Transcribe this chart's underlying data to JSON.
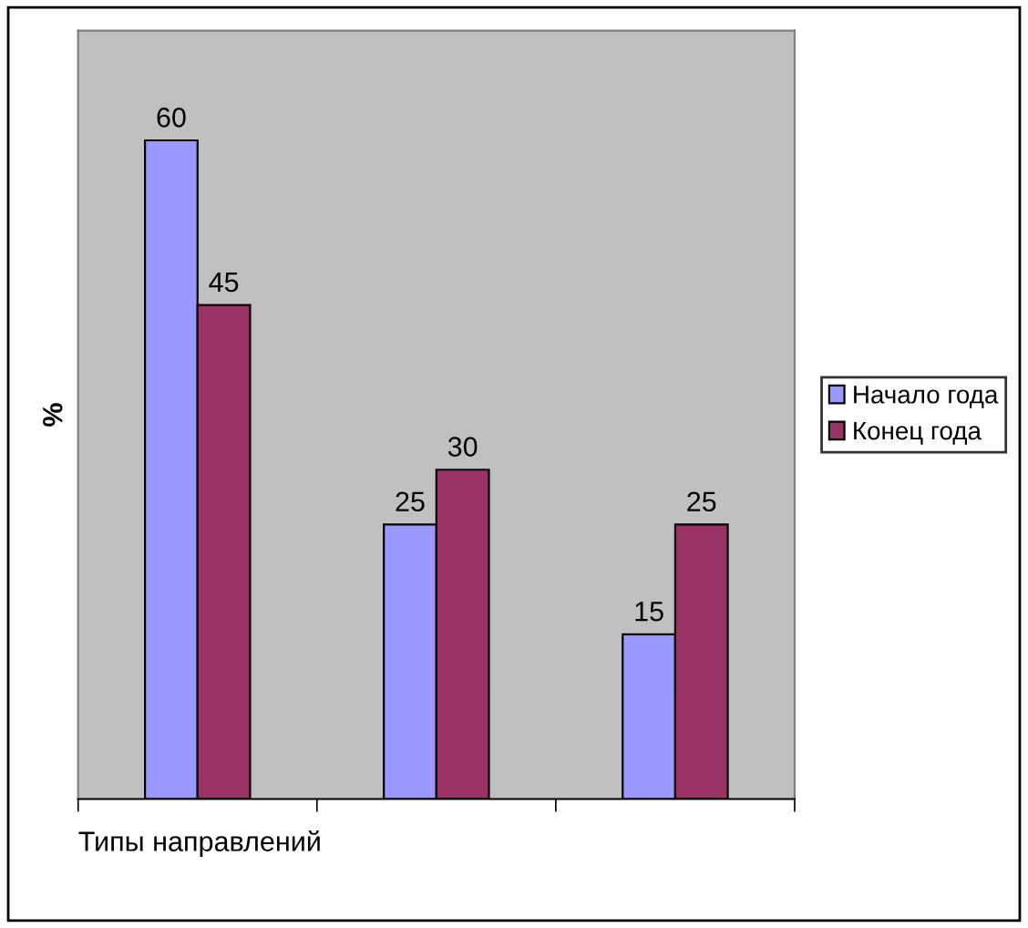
{
  "chart_data": {
    "type": "bar",
    "xlabel": "Типы направлений",
    "ylabel": "%",
    "categories": [
      null,
      null,
      null
    ],
    "series": [
      {
        "name": "Начало года",
        "color": "#9999ff",
        "values": [
          60,
          25,
          15
        ]
      },
      {
        "name": "Конец года",
        "color": "#993366",
        "values": [
          45,
          30,
          25
        ]
      }
    ],
    "ylim": [
      0,
      70
    ],
    "data_labels": true,
    "legend": "right",
    "grid": false
  }
}
